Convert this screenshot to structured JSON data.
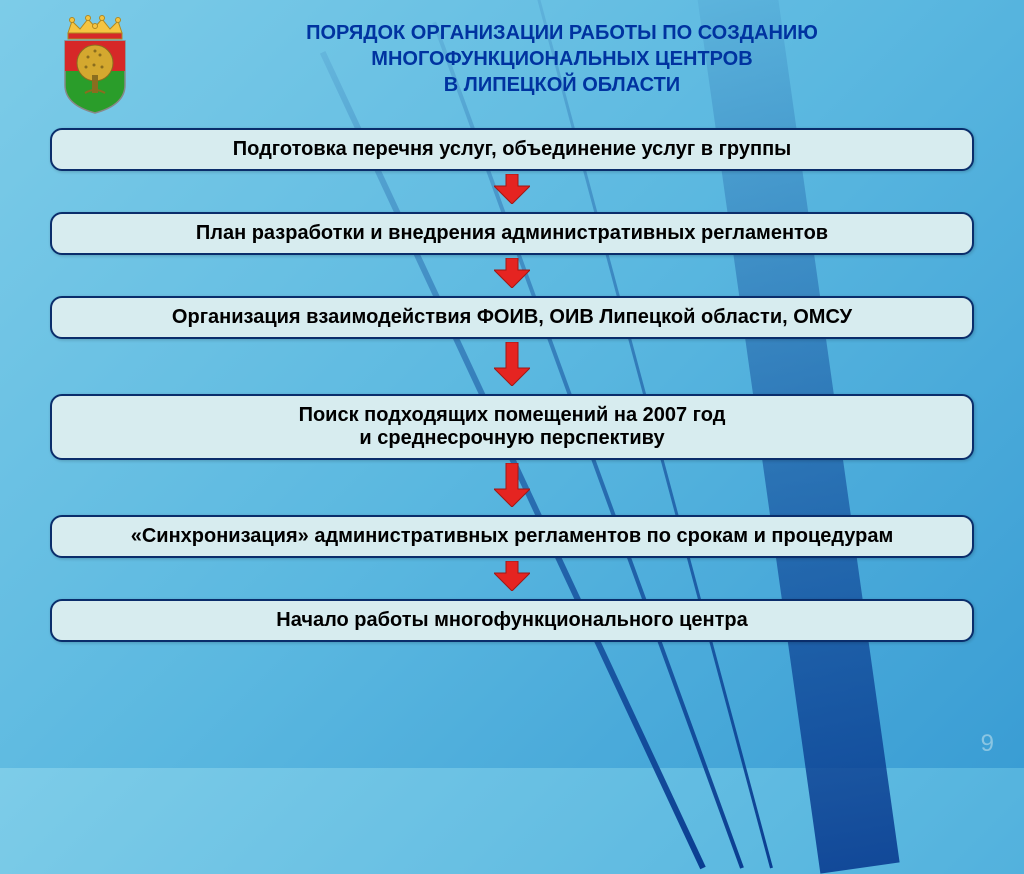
{
  "title": {
    "line1": "ПОРЯДОК ОРГАНИЗАЦИИ РАБОТЫ ПО СОЗДАНИЮ",
    "line2": "МНОГОФУНКЦИОНАЛЬНЫХ ЦЕНТРОВ",
    "line3": "В ЛИПЕЦКОЙ ОБЛАСТИ",
    "color": "#0033a0",
    "fontsize": 20
  },
  "steps": [
    {
      "text": "Подготовка перечня услуг, объединение услуг в группы",
      "fontsize": 20,
      "gap_after": "sm"
    },
    {
      "text": "План разработки и внедрения административных регламентов",
      "fontsize": 20,
      "gap_after": "sm"
    },
    {
      "text": "Организация взаимодействия ФОИВ, ОИВ Липецкой области, ОМСУ",
      "fontsize": 20,
      "gap_after": "lg"
    },
    {
      "text": "Поиск подходящих помещений на 2007 год\nи среднесрочную перспективу",
      "fontsize": 20,
      "gap_after": "lg"
    },
    {
      "text": "«Синхронизация» административных регламентов по срокам и процедурам",
      "fontsize": 20,
      "gap_after": "sm"
    },
    {
      "text": "Начало работы многофункционального центра",
      "fontsize": 20,
      "gap_after": null
    }
  ],
  "style": {
    "box_bg": "#d7ecef",
    "box_border": "#0a2d6b",
    "box_radius": 12,
    "arrow_fill": "#e52421",
    "arrow_stroke": "#a01815",
    "background_gradient": [
      "#7dcce8",
      "#5bb8e0",
      "#3a9dd4"
    ],
    "ray_color": "#0a3d91"
  },
  "crest": {
    "crown_color": "#f5c542",
    "shield_top": "#d62828",
    "shield_bottom": "#2a9d2a",
    "tree_color": "#d4a82f"
  },
  "page_number": "9"
}
